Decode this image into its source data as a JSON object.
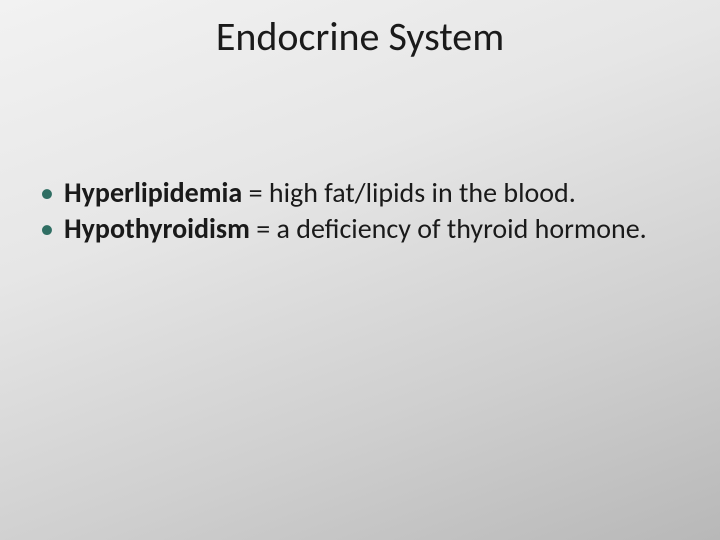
{
  "slide": {
    "title": "Endocrine System",
    "bullets": [
      {
        "term": "Hyperlipidemia",
        "definition": " = high fat/lipids in the blood."
      },
      {
        "term": "Hypothyroidism",
        "definition": " = a deficiency of thyroid hormone."
      }
    ],
    "colors": {
      "bullet_marker": "#2f6e63",
      "text": "#1a1a1a",
      "background_gradient_start": "#f2f2f2",
      "background_gradient_end": "#b8b8b8"
    },
    "typography": {
      "title_fontsize": 40,
      "body_fontsize": 28,
      "font_family": "Calibri"
    }
  }
}
